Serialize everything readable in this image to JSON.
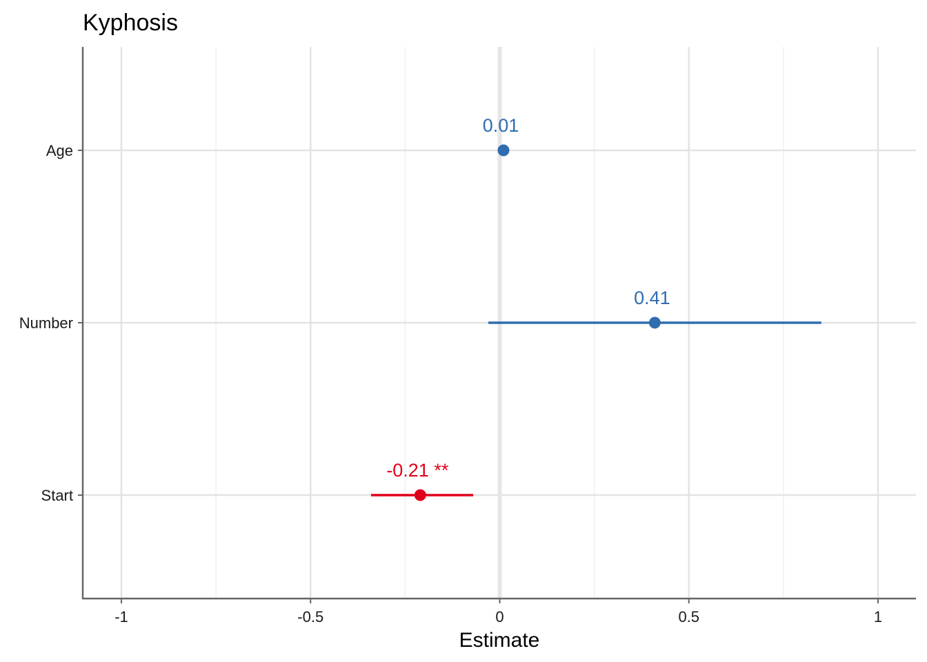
{
  "colors": {
    "positive": "#2f6db0",
    "negative": "#e0001b",
    "grid_major": "#e3e3e3",
    "grid_minor": "#efefef",
    "zero_line": "#e6e6e6",
    "axis": "#666666"
  },
  "chart_data": {
    "type": "forest",
    "title": "Kyphosis",
    "xlabel": "Estimate",
    "ylabel": "",
    "xlim": [
      -1.1,
      1.1
    ],
    "x_ticks": [
      -1,
      -0.5,
      0,
      0.5,
      1
    ],
    "x_tick_labels": [
      "-1",
      "-0.5",
      "0",
      "0.5",
      "1"
    ],
    "grid": true,
    "legend": "none",
    "terms": [
      "Age",
      "Number",
      "Start"
    ],
    "estimates": [
      0.01,
      0.41,
      -0.21
    ],
    "ci_low": [
      null,
      -0.03,
      -0.34
    ],
    "ci_high": [
      null,
      0.85,
      -0.07
    ],
    "labels": [
      "0.01",
      "0.41",
      "-0.21 **"
    ],
    "colors": [
      "#2f6db0",
      "#2f6db0",
      "#e0001b"
    ]
  }
}
